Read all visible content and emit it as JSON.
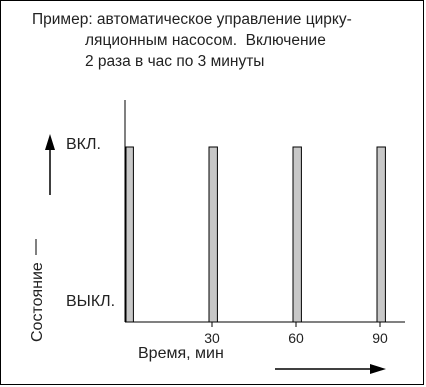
{
  "chart_data": {
    "type": "bar",
    "title_lines": [
      "Пример: автоматическое управление цирку-",
      "ляционным насосом.  Включение",
      "2 раза в час по 3 минуты"
    ],
    "xlabel": "Время, мин",
    "ylabel": "Состояние",
    "y_states": [
      "ВКЛ.",
      "ВЫКЛ."
    ],
    "x_ticks": [
      30,
      60,
      90
    ],
    "xlim": [
      0,
      100
    ],
    "intervals": [
      {
        "start": 0,
        "end": 3,
        "state": "ВКЛ."
      },
      {
        "start": 30,
        "end": 33,
        "state": "ВКЛ."
      },
      {
        "start": 60,
        "end": 63,
        "state": "ВКЛ."
      },
      {
        "start": 90,
        "end": 93,
        "state": "ВКЛ."
      }
    ],
    "bar_color": "#c8c8c8"
  }
}
